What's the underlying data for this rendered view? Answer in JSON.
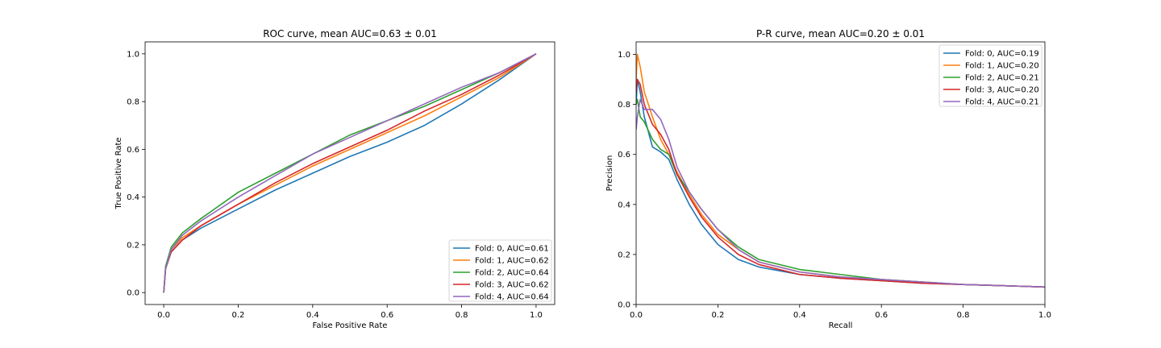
{
  "colors": {
    "fold_0": "#1f77b4",
    "fold_1": "#ff7f0e",
    "fold_2": "#2ca02c",
    "fold_3": "#d62728",
    "fold_4": "#9467bd"
  },
  "chart_data": [
    {
      "type": "line",
      "title": "ROC curve, mean AUC=0.63 ± 0.01",
      "xlabel": "False Positive Rate",
      "ylabel": "True Positive Rate",
      "xlim": [
        -0.05,
        1.05
      ],
      "ylim": [
        -0.05,
        1.05
      ],
      "xticks": [
        "0.0",
        "0.2",
        "0.4",
        "0.6",
        "0.8",
        "1.0"
      ],
      "yticks": [
        "0.0",
        "0.2",
        "0.4",
        "0.6",
        "0.8",
        "1.0"
      ],
      "grid": false,
      "legend_position": "lower-right",
      "series": [
        {
          "name": "Fold: 0, AUC=0.61",
          "x": [
            0,
            0.005,
            0.02,
            0.05,
            0.1,
            0.2,
            0.3,
            0.4,
            0.5,
            0.6,
            0.7,
            0.8,
            0.9,
            1.0
          ],
          "y": [
            0,
            0.1,
            0.17,
            0.22,
            0.27,
            0.35,
            0.43,
            0.5,
            0.57,
            0.63,
            0.7,
            0.79,
            0.89,
            1.0
          ]
        },
        {
          "name": "Fold: 1, AUC=0.62",
          "x": [
            0,
            0.005,
            0.02,
            0.05,
            0.1,
            0.2,
            0.3,
            0.4,
            0.5,
            0.6,
            0.7,
            0.8,
            0.9,
            1.0
          ],
          "y": [
            0,
            0.1,
            0.18,
            0.23,
            0.28,
            0.37,
            0.45,
            0.53,
            0.6,
            0.67,
            0.74,
            0.82,
            0.9,
            1.0
          ]
        },
        {
          "name": "Fold: 2, AUC=0.64",
          "x": [
            0,
            0.005,
            0.02,
            0.05,
            0.1,
            0.2,
            0.3,
            0.4,
            0.5,
            0.6,
            0.7,
            0.8,
            0.9,
            1.0
          ],
          "y": [
            0,
            0.11,
            0.19,
            0.25,
            0.31,
            0.42,
            0.5,
            0.58,
            0.66,
            0.72,
            0.78,
            0.85,
            0.92,
            1.0
          ]
        },
        {
          "name": "Fold: 3, AUC=0.62",
          "x": [
            0,
            0.005,
            0.02,
            0.05,
            0.1,
            0.2,
            0.3,
            0.4,
            0.5,
            0.6,
            0.7,
            0.8,
            0.9,
            1.0
          ],
          "y": [
            0,
            0.1,
            0.17,
            0.22,
            0.28,
            0.37,
            0.46,
            0.54,
            0.61,
            0.68,
            0.76,
            0.83,
            0.91,
            1.0
          ]
        },
        {
          "name": "Fold: 4, AUC=0.64",
          "x": [
            0,
            0.005,
            0.02,
            0.05,
            0.1,
            0.2,
            0.3,
            0.4,
            0.5,
            0.6,
            0.7,
            0.8,
            0.9,
            1.0
          ],
          "y": [
            0,
            0.1,
            0.18,
            0.24,
            0.3,
            0.4,
            0.49,
            0.58,
            0.65,
            0.72,
            0.79,
            0.86,
            0.92,
            1.0
          ]
        }
      ]
    },
    {
      "type": "line",
      "title": "P-R curve, mean AUC=0.20 ± 0.01",
      "xlabel": "Recall",
      "ylabel": "Precision",
      "xlim": [
        0.0,
        1.0
      ],
      "ylim": [
        0.0,
        1.05
      ],
      "xticks": [
        "0.0",
        "0.2",
        "0.4",
        "0.6",
        "0.8",
        "1.0"
      ],
      "yticks": [
        "0.0",
        "0.2",
        "0.4",
        "0.6",
        "0.8",
        "1.0"
      ],
      "grid": false,
      "legend_position": "upper-right",
      "series": [
        {
          "name": "Fold: 0, AUC=0.19",
          "x": [
            0,
            0.003,
            0.01,
            0.02,
            0.04,
            0.06,
            0.08,
            0.1,
            0.13,
            0.16,
            0.2,
            0.25,
            0.3,
            0.4,
            0.5,
            0.6,
            0.7,
            0.8,
            0.9,
            1.0
          ],
          "y": [
            0.8,
            0.9,
            0.85,
            0.75,
            0.63,
            0.61,
            0.58,
            0.5,
            0.4,
            0.32,
            0.24,
            0.18,
            0.15,
            0.12,
            0.105,
            0.095,
            0.085,
            0.08,
            0.075,
            0.07
          ]
        },
        {
          "name": "Fold: 1, AUC=0.20",
          "x": [
            0,
            0.003,
            0.01,
            0.02,
            0.04,
            0.06,
            0.08,
            0.1,
            0.13,
            0.16,
            0.2,
            0.25,
            0.3,
            0.4,
            0.5,
            0.6,
            0.7,
            0.8,
            0.9,
            1.0
          ],
          "y": [
            0.9,
            1.0,
            0.95,
            0.85,
            0.75,
            0.66,
            0.6,
            0.53,
            0.44,
            0.36,
            0.28,
            0.22,
            0.17,
            0.13,
            0.11,
            0.1,
            0.09,
            0.08,
            0.075,
            0.07
          ]
        },
        {
          "name": "Fold: 2, AUC=0.21",
          "x": [
            0,
            0.003,
            0.01,
            0.02,
            0.04,
            0.06,
            0.08,
            0.1,
            0.13,
            0.16,
            0.2,
            0.25,
            0.3,
            0.4,
            0.5,
            0.6,
            0.7,
            0.8,
            0.9,
            1.0
          ],
          "y": [
            0.8,
            0.82,
            0.75,
            0.73,
            0.66,
            0.62,
            0.6,
            0.52,
            0.45,
            0.38,
            0.3,
            0.23,
            0.18,
            0.14,
            0.12,
            0.1,
            0.09,
            0.08,
            0.075,
            0.07
          ]
        },
        {
          "name": "Fold: 3, AUC=0.20",
          "x": [
            0,
            0.003,
            0.01,
            0.02,
            0.04,
            0.06,
            0.08,
            0.1,
            0.13,
            0.16,
            0.2,
            0.25,
            0.3,
            0.4,
            0.5,
            0.6,
            0.7,
            0.8,
            0.9,
            1.0
          ],
          "y": [
            0.85,
            0.9,
            0.88,
            0.8,
            0.72,
            0.68,
            0.62,
            0.52,
            0.43,
            0.35,
            0.27,
            0.2,
            0.16,
            0.12,
            0.105,
            0.095,
            0.085,
            0.08,
            0.075,
            0.07
          ]
        },
        {
          "name": "Fold: 4, AUC=0.21",
          "x": [
            0,
            0.003,
            0.01,
            0.02,
            0.04,
            0.06,
            0.08,
            0.1,
            0.13,
            0.16,
            0.2,
            0.25,
            0.3,
            0.4,
            0.5,
            0.6,
            0.7,
            0.8,
            0.9,
            1.0
          ],
          "y": [
            0.7,
            0.75,
            0.82,
            0.78,
            0.78,
            0.74,
            0.66,
            0.55,
            0.45,
            0.38,
            0.3,
            0.22,
            0.17,
            0.13,
            0.11,
            0.1,
            0.09,
            0.08,
            0.075,
            0.07
          ]
        }
      ]
    }
  ]
}
